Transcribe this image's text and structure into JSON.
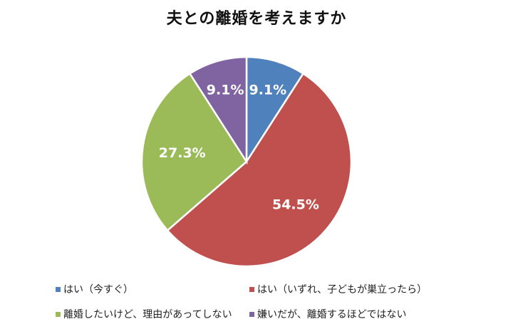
{
  "chart_data": {
    "type": "pie",
    "title": "夫との離婚を考えますか",
    "start_angle_deg": 0,
    "direction": "clockwise",
    "legend_position": "bottom",
    "slices": [
      {
        "label": "はい（今すぐ）",
        "value": 9.1,
        "value_label": "9.1%",
        "color": "#4F81BD"
      },
      {
        "label": "はい（いずれ、子どもが巣立ったら）",
        "value": 54.5,
        "value_label": "54.5%",
        "color": "#C0504D"
      },
      {
        "label": "離婚したいけど、理由があってしない",
        "value": 27.3,
        "value_label": "27.3%",
        "color": "#9BBB59"
      },
      {
        "label": "嫌いだが、離婚するほどではない",
        "value": 9.1,
        "value_label": "9.1%",
        "color": "#8064A2"
      }
    ]
  }
}
